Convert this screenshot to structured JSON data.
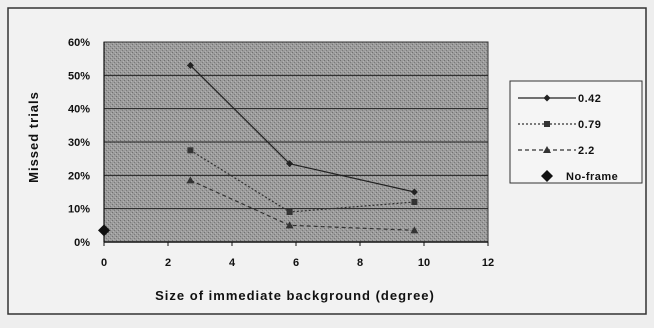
{
  "chart_data": {
    "type": "line",
    "title": "",
    "xlabel": "Size of immediate background (degree)",
    "ylabel": "Missed trials",
    "xlim": [
      0,
      12
    ],
    "ylim": [
      0,
      60
    ],
    "x_ticks": [
      "0",
      "2",
      "4",
      "6",
      "8",
      "10",
      "12"
    ],
    "y_ticks": [
      "0%",
      "10%",
      "20%",
      "30%",
      "40%",
      "50%",
      "60%"
    ],
    "grid": true,
    "legend_position": "right",
    "series": [
      {
        "name": "0.42",
        "marker": "diamond",
        "line_style": "solid",
        "color": "#222222",
        "points": [
          [
            2.7,
            53
          ],
          [
            5.8,
            23.5
          ],
          [
            9.7,
            15
          ]
        ]
      },
      {
        "name": "0.79",
        "marker": "square",
        "line_style": "dotted",
        "color": "#333333",
        "points": [
          [
            2.7,
            27.5
          ],
          [
            5.8,
            9
          ],
          [
            9.7,
            12
          ]
        ]
      },
      {
        "name": "2.2",
        "marker": "triangle",
        "line_style": "dashed",
        "color": "#333333",
        "points": [
          [
            2.7,
            18.5
          ],
          [
            5.8,
            5
          ],
          [
            9.7,
            3.5
          ]
        ]
      },
      {
        "name": "No-frame",
        "marker": "big-diamond",
        "line_style": "none",
        "color": "#111111",
        "points": [
          [
            0,
            3.5
          ]
        ]
      }
    ]
  }
}
